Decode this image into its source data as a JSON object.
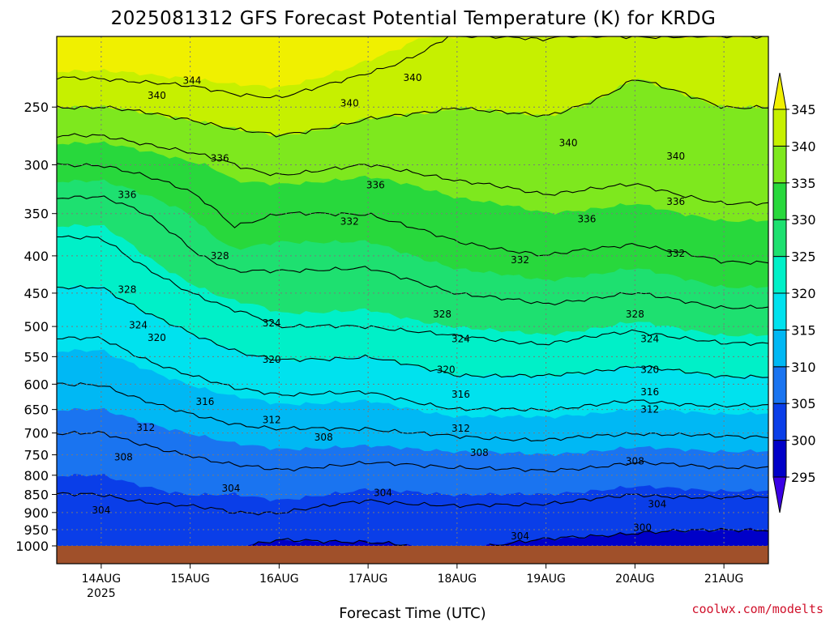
{
  "chart_data": {
    "type": "heatmap",
    "title": "2025081312 GFS Forecast Potential Temperature (K) for KRDG",
    "xlabel": "Forecast Time (UTC)",
    "ylabel": "",
    "credit": "coolwx.com/modelts",
    "x_ticks": [
      {
        "label": "14AUG",
        "sub": "2025"
      },
      {
        "label": "15AUG",
        "sub": ""
      },
      {
        "label": "16AUG",
        "sub": ""
      },
      {
        "label": "17AUG",
        "sub": ""
      },
      {
        "label": "18AUG",
        "sub": ""
      },
      {
        "label": "19AUG",
        "sub": ""
      },
      {
        "label": "20AUG",
        "sub": ""
      },
      {
        "label": "21AUG",
        "sub": ""
      }
    ],
    "x_hours": [
      12,
      36,
      60,
      84,
      108,
      132,
      156,
      180
    ],
    "x_range_hours": [
      0,
      192
    ],
    "y_ticks": [
      "250",
      "300",
      "350",
      "400",
      "450",
      "500",
      "550",
      "600",
      "650",
      "700",
      "750",
      "800",
      "850",
      "900",
      "950",
      "1000"
    ],
    "y_values_hpa": [
      250,
      300,
      350,
      400,
      450,
      500,
      550,
      600,
      650,
      700,
      750,
      800,
      850,
      900,
      950,
      1000
    ],
    "y_range_hpa": [
      200,
      1000
    ],
    "y_scale": "log",
    "grid": true,
    "colorbar": {
      "levels": [
        295,
        300,
        305,
        310,
        315,
        320,
        325,
        330,
        335,
        340,
        345
      ],
      "labels": [
        "295",
        "300",
        "305",
        "310",
        "315",
        "320",
        "325",
        "330",
        "335",
        "340",
        "345"
      ],
      "colors": [
        "#3a00e6",
        "#0000c8",
        "#0a3ee8",
        "#1a74f0",
        "#00b8f4",
        "#00e2ee",
        "#00f0c8",
        "#1ee070",
        "#28d83c",
        "#7ee81e",
        "#c6f000",
        "#f0f000"
      ],
      "extend": "both"
    },
    "contour_levels_K": [
      300,
      304,
      308,
      312,
      316,
      320,
      324,
      328,
      332,
      336,
      340,
      344
    ],
    "surface_color": "#a0502a",
    "profiles": [
      {
        "label": "14AUG 00Z",
        "theta_K": [
          340.0,
          332.0,
          326.0,
          322.5,
          319.5,
          317.0,
          314.5,
          312.0,
          310.0,
          308.0,
          306.5,
          305.0,
          304.0,
          303.0,
          302.5,
          301.0
        ]
      },
      {
        "label": "15AUG 00Z",
        "theta_K": [
          341.5,
          334.5,
          330.0,
          327.5,
          324.0,
          320.5,
          318.0,
          315.0,
          312.5,
          310.0,
          308.0,
          306.5,
          305.0,
          303.5,
          302.0,
          300.0
        ]
      },
      {
        "label": "15AUG 12Z",
        "theta_K": [
          342.5,
          336.0,
          333.0,
          329.5,
          326.0,
          322.0,
          319.5,
          316.5,
          313.5,
          311.0,
          309.0,
          307.0,
          305.0,
          304.0,
          302.5,
          300.5
        ]
      },
      {
        "label": "16AUG 00Z",
        "theta_K": [
          343.0,
          337.0,
          332.0,
          329.0,
          326.5,
          324.0,
          320.5,
          317.0,
          314.5,
          311.5,
          309.5,
          307.5,
          305.5,
          304.0,
          302.0,
          299.0
        ]
      },
      {
        "label": "17AUG 00Z",
        "theta_K": [
          341.0,
          336.0,
          332.0,
          329.0,
          326.0,
          324.0,
          320.0,
          317.0,
          314.0,
          311.5,
          309.0,
          306.5,
          304.5,
          303.0,
          301.5,
          299.5
        ]
      },
      {
        "label": "18AUG 00Z",
        "theta_K": [
          340.0,
          337.0,
          334.0,
          331.0,
          328.0,
          325.0,
          322.0,
          319.0,
          316.0,
          312.5,
          309.5,
          307.0,
          305.0,
          303.5,
          302.5,
          300.5
        ]
      },
      {
        "label": "19AUG 00Z",
        "theta_K": [
          340.5,
          337.5,
          335.0,
          332.0,
          329.0,
          326.0,
          322.5,
          319.0,
          316.0,
          313.0,
          310.0,
          307.5,
          305.0,
          303.0,
          301.5,
          299.0
        ]
      },
      {
        "label": "20AUG 00Z",
        "theta_K": [
          339.0,
          337.0,
          334.5,
          331.0,
          328.0,
          324.5,
          321.0,
          318.0,
          315.0,
          312.0,
          309.0,
          306.5,
          304.0,
          302.5,
          300.5,
          298.0
        ]
      },
      {
        "label": "21AUG 00Z",
        "theta_K": [
          340.0,
          338.0,
          335.5,
          332.5,
          329.5,
          326.0,
          322.5,
          319.0,
          315.5,
          312.5,
          309.5,
          307.0,
          304.5,
          302.0,
          300.0,
          297.5
        ]
      }
    ],
    "profile_hours": [
      12,
      36,
      48,
      60,
      84,
      108,
      132,
      156,
      180
    ],
    "contour_labels": [
      {
        "text": "344",
        "hour": 36.5,
        "hpa": 230
      },
      {
        "text": "340",
        "hour": 27,
        "hpa": 241
      },
      {
        "text": "340",
        "hour": 96,
        "hpa": 228
      },
      {
        "text": "340",
        "hour": 79,
        "hpa": 247
      },
      {
        "text": "340",
        "hour": 138,
        "hpa": 280
      },
      {
        "text": "340",
        "hour": 167,
        "hpa": 292
      },
      {
        "text": "336",
        "hour": 44,
        "hpa": 294
      },
      {
        "text": "336",
        "hour": 86,
        "hpa": 320
      },
      {
        "text": "336",
        "hour": 19,
        "hpa": 330
      },
      {
        "text": "336",
        "hour": 143,
        "hpa": 356
      },
      {
        "text": "336",
        "hour": 167,
        "hpa": 337
      },
      {
        "text": "332",
        "hour": 79,
        "hpa": 359
      },
      {
        "text": "332",
        "hour": 125,
        "hpa": 405
      },
      {
        "text": "332",
        "hour": 167,
        "hpa": 397
      },
      {
        "text": "328",
        "hour": 44,
        "hpa": 400
      },
      {
        "text": "328",
        "hour": 19,
        "hpa": 445
      },
      {
        "text": "328",
        "hour": 104,
        "hpa": 481
      },
      {
        "text": "328",
        "hour": 156,
        "hpa": 481
      },
      {
        "text": "324",
        "hour": 22,
        "hpa": 498
      },
      {
        "text": "324",
        "hour": 58,
        "hpa": 495
      },
      {
        "text": "324",
        "hour": 109,
        "hpa": 520
      },
      {
        "text": "324",
        "hour": 160,
        "hpa": 520
      },
      {
        "text": "320",
        "hour": 27,
        "hpa": 518
      },
      {
        "text": "320",
        "hour": 58,
        "hpa": 555
      },
      {
        "text": "320",
        "hour": 105,
        "hpa": 573
      },
      {
        "text": "320",
        "hour": 160,
        "hpa": 573
      },
      {
        "text": "316",
        "hour": 40,
        "hpa": 634
      },
      {
        "text": "316",
        "hour": 109,
        "hpa": 620
      },
      {
        "text": "316",
        "hour": 160,
        "hpa": 615
      },
      {
        "text": "312",
        "hour": 24,
        "hpa": 688
      },
      {
        "text": "312",
        "hour": 58,
        "hpa": 672
      },
      {
        "text": "312",
        "hour": 109,
        "hpa": 690
      },
      {
        "text": "312",
        "hour": 160,
        "hpa": 650
      },
      {
        "text": "308",
        "hour": 18,
        "hpa": 756
      },
      {
        "text": "308",
        "hour": 72,
        "hpa": 710
      },
      {
        "text": "308",
        "hour": 114,
        "hpa": 745
      },
      {
        "text": "308",
        "hour": 156,
        "hpa": 765
      },
      {
        "text": "304",
        "hour": 47,
        "hpa": 834
      },
      {
        "text": "304",
        "hour": 88,
        "hpa": 846
      },
      {
        "text": "304",
        "hour": 12,
        "hpa": 893
      },
      {
        "text": "304",
        "hour": 162,
        "hpa": 877
      },
      {
        "text": "304",
        "hour": 125,
        "hpa": 970
      },
      {
        "text": "300",
        "hour": 158,
        "hpa": 944
      }
    ]
  }
}
